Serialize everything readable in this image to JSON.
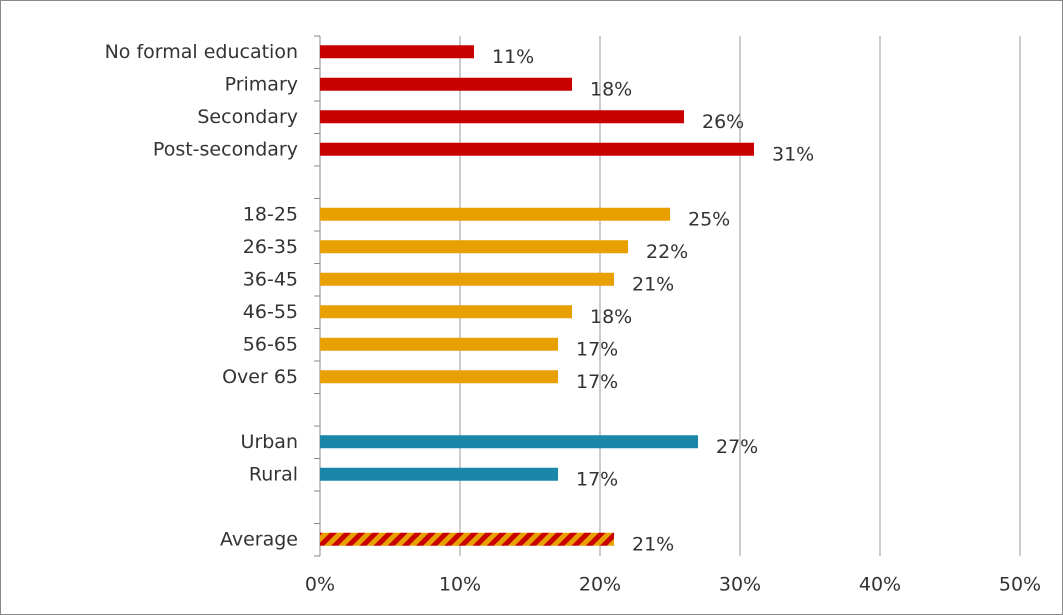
{
  "chart_data": {
    "type": "hbar",
    "categories": [
      "No formal education",
      "Primary",
      "Secondary",
      "Post-secondary",
      null,
      "18-25",
      "26-35",
      "36-45",
      "46-55",
      "56-65",
      "Over 65",
      null,
      "Urban",
      "Rural",
      null,
      "Average"
    ],
    "values": [
      11,
      18,
      26,
      31,
      null,
      25,
      22,
      21,
      18,
      17,
      17,
      null,
      27,
      17,
      null,
      21
    ],
    "value_labels": [
      "11%",
      "18%",
      "26%",
      "31%",
      null,
      "25%",
      "22%",
      "21%",
      "18%",
      "17%",
      "17%",
      null,
      "27%",
      "17%",
      null,
      "21%"
    ],
    "colors": [
      "#c80000",
      "#c80000",
      "#c80000",
      "#c80000",
      null,
      "#e8a000",
      "#e8a000",
      "#e8a000",
      "#e8a000",
      "#e8a000",
      "#e8a000",
      null,
      "#1a87a8",
      "#1a87a8",
      null,
      [
        "#c80000",
        "#e8a000"
      ]
    ],
    "xlim": [
      0,
      50
    ],
    "xticks": [
      {
        "value": 0,
        "label": "0%"
      },
      {
        "value": 10,
        "label": "10%"
      },
      {
        "value": 20,
        "label": "20%"
      },
      {
        "value": 30,
        "label": "30%"
      },
      {
        "value": 40,
        "label": "40%"
      },
      {
        "value": 50,
        "label": "50%"
      }
    ],
    "grid": true
  }
}
